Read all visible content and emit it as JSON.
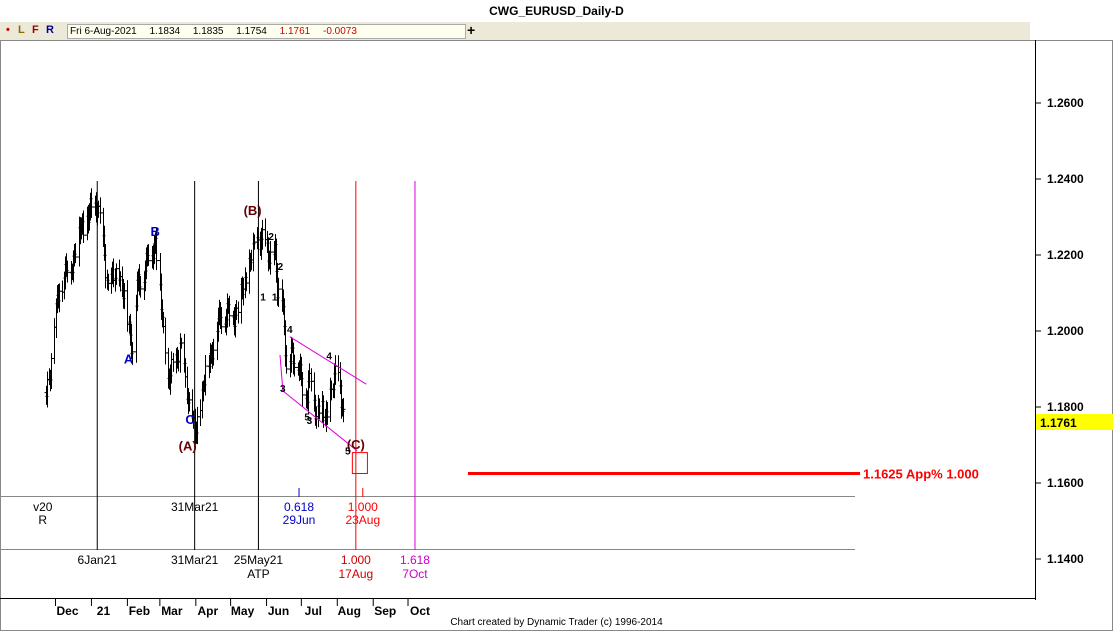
{
  "window": {
    "title": "CWG_EURUSD_Daily-D"
  },
  "toolbar": {
    "buttons": [
      {
        "label": "•",
        "color": "#cc0000"
      },
      {
        "label": "L",
        "color": "#8b6b00"
      },
      {
        "label": "F",
        "color": "#990000"
      },
      {
        "label": "R",
        "color": "#000099"
      }
    ],
    "ohlc": {
      "date": "Fri 6-Aug-2021",
      "open": "1.1834",
      "high": "1.1835",
      "low": "1.1754",
      "close": "1.1761",
      "change": "-0.0073"
    },
    "add_label": "+"
  },
  "footer": {
    "credit": "Chart created by Dynamic Trader  (c)  1996-2014"
  },
  "colors": {
    "price": "#000000",
    "wave_blue": "#0000cc",
    "wave_dark": "#660000",
    "target_red": "#ff0000",
    "label_red": "#cc0000",
    "channel_magenta": "#dd00dd",
    "label_magenta": "#cc00cc",
    "current_price_bg": "#ffff00"
  },
  "chart_data": {
    "type": "ohlc",
    "y_axis": {
      "ticks": [
        "1.2600",
        "1.2400",
        "1.2200",
        "1.2000",
        "1.1800",
        "1.1600",
        "1.1400"
      ]
    },
    "current_price_label": "1.1761",
    "x_axis": {
      "months": [
        "Dec",
        "21",
        "Feb",
        "Mar",
        "Apr",
        "May",
        "Jun",
        "Jul",
        "Aug",
        "Sep",
        "Oct"
      ]
    },
    "price_path": [
      [
        "2020-11-23",
        1.183
      ],
      [
        "2020-12-04",
        1.212
      ],
      [
        "2020-12-15",
        1.218
      ],
      [
        "2020-12-21",
        1.226
      ],
      [
        "2020-12-31",
        1.231
      ],
      [
        "2021-01-06",
        1.234
      ],
      [
        "2021-01-15",
        1.212
      ],
      [
        "2021-01-25",
        1.215
      ],
      [
        "2021-02-05",
        1.196
      ],
      [
        "2021-02-09",
        1.211
      ],
      [
        "2021-02-25",
        1.224
      ],
      [
        "2021-03-08",
        1.186
      ],
      [
        "2021-03-18",
        1.196
      ],
      [
        "2021-03-31",
        1.172
      ],
      [
        "2021-04-09",
        1.189
      ],
      [
        "2021-04-22",
        1.204
      ],
      [
        "2021-05-06",
        1.205
      ],
      [
        "2021-05-14",
        1.214
      ],
      [
        "2021-05-25",
        1.225
      ],
      [
        "2021-06-02",
        1.221
      ],
      [
        "2021-06-08",
        1.219
      ],
      [
        "2021-06-10",
        1.21
      ],
      [
        "2021-06-14",
        1.211
      ],
      [
        "2021-06-18",
        1.189
      ],
      [
        "2021-06-22",
        1.196
      ],
      [
        "2021-06-29",
        1.189
      ],
      [
        "2021-07-06",
        1.183
      ],
      [
        "2021-07-09",
        1.187
      ],
      [
        "2021-07-14",
        1.179
      ],
      [
        "2021-07-20",
        1.178
      ],
      [
        "2021-07-23",
        1.178
      ],
      [
        "2021-07-30",
        1.188
      ],
      [
        "2021-08-02",
        1.189
      ],
      [
        "2021-08-06",
        1.1761
      ]
    ],
    "wave_labels": [
      {
        "text": "B",
        "date": "2021-02-25",
        "price": 1.225,
        "color": "blue"
      },
      {
        "text": "A",
        "date": "2021-02-02",
        "price": 1.1915,
        "color": "blue"
      },
      {
        "text": "C",
        "date": "2021-03-27",
        "price": 1.1755,
        "color": "blue"
      },
      {
        "text": "(A)",
        "date": "2021-03-25",
        "price": 1.1685,
        "color": "dark"
      },
      {
        "text": "(B)",
        "date": "2021-05-20",
        "price": 1.2305,
        "color": "dark"
      },
      {
        "text": "(C)",
        "date": "2021-08-17",
        "price": 1.169,
        "color": "dark"
      },
      {
        "text": "2",
        "date": "2021-06-05",
        "price": 1.224,
        "color": "black"
      },
      {
        "text": "2",
        "date": "2021-06-13",
        "price": 1.216,
        "color": "black"
      },
      {
        "text": "1",
        "date": "2021-05-29",
        "price": 1.208,
        "color": "black"
      },
      {
        "text": "1",
        "date": "2021-06-08",
        "price": 1.208,
        "color": "black"
      },
      {
        "text": "4",
        "date": "2021-06-21",
        "price": 1.1995,
        "color": "black"
      },
      {
        "text": "4",
        "date": "2021-07-25",
        "price": 1.1925,
        "color": "black"
      },
      {
        "text": "3",
        "date": "2021-06-15",
        "price": 1.184,
        "color": "black"
      },
      {
        "text": "5",
        "date": "2021-07-06",
        "price": 1.1765,
        "color": "black"
      },
      {
        "text": "3",
        "date": "2021-07-08",
        "price": 1.1755,
        "color": "black"
      },
      {
        "text": "5",
        "date": "2021-08-10",
        "price": 1.1675,
        "color": "black"
      }
    ],
    "time_lines": [
      {
        "date": "2021-01-06",
        "color": "black",
        "label": "6Jan21",
        "sublabel": ""
      },
      {
        "date": "2021-03-31",
        "color": "black",
        "label": "31Mar21",
        "sublabel": ""
      },
      {
        "date": "2021-05-25",
        "color": "black",
        "label": "25May21",
        "sublabel": "ATP"
      },
      {
        "date": "2021-08-17",
        "color": "red",
        "label": "1.000",
        "sublabel": "17Aug"
      },
      {
        "date": "2021-10-07",
        "color": "magenta",
        "label": "1.618",
        "sublabel": "7Oct"
      }
    ],
    "time_projection_row": [
      {
        "date": "2020-11-20",
        "label": "v20",
        "sublabel": "R",
        "color": "black"
      },
      {
        "date": "2021-03-31",
        "label": "31Mar21",
        "sublabel": "",
        "color": "black"
      },
      {
        "date": "2021-06-29",
        "label": "0.618",
        "sublabel": "29Jun",
        "color": "blue"
      },
      {
        "date": "2021-08-23",
        "label": "1.000",
        "sublabel": "23Aug",
        "color": "red"
      }
    ],
    "price_target": {
      "price": 1.1625,
      "label": "1.1625 App% 1.000"
    },
    "channel": {
      "upper": [
        [
          "2021-06-21",
          1.1985
        ],
        [
          "2021-08-26",
          1.186
        ]
      ],
      "lower": [
        [
          "2021-06-14",
          1.1845
        ],
        [
          "2021-08-18",
          1.1685
        ]
      ]
    },
    "target_box": {
      "date_from": "2021-08-14",
      "date_to": "2021-08-27",
      "price_top": 1.168,
      "price_bottom": 1.1625
    }
  }
}
